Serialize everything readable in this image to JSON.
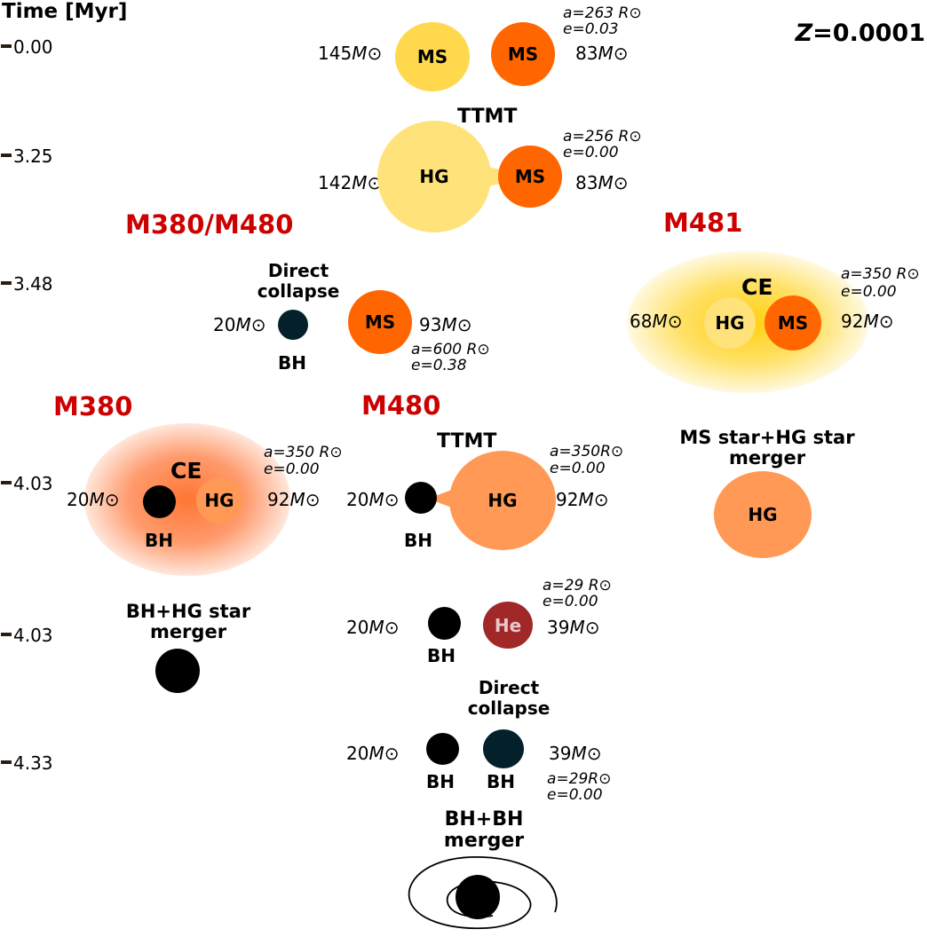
{
  "axis": {
    "title": "Time [Myr]",
    "ticks": [
      "0.00",
      "3.25",
      "3.48",
      "4.03",
      "4.03",
      "4.33"
    ]
  },
  "metallicity": "Z=0.0001",
  "msun": "M⊙",
  "stage0": {
    "star1": {
      "type": "MS",
      "mass": "145"
    },
    "star2": {
      "type": "MS",
      "mass": "83"
    },
    "orbit_a": "a=263 R⊙",
    "orbit_e": "e=0.03"
  },
  "stage1": {
    "event": "TTMT",
    "star1": {
      "type": "HG",
      "mass": "142"
    },
    "star2": {
      "type": "MS",
      "mass": "83"
    },
    "orbit_a": "a=256 R⊙",
    "orbit_e": "e=0.00"
  },
  "branch_m380_480": {
    "title": "M380/M480",
    "event_line1": "Direct",
    "event_line2": "collapse",
    "bh_label": "BH",
    "bh_mass": "20",
    "star": {
      "type": "MS",
      "mass": "93"
    },
    "orbit_a": "a=600 R⊙",
    "orbit_e": "e=0.38"
  },
  "branch_m481": {
    "title": "M481",
    "event": "CE",
    "star1": {
      "type": "HG",
      "mass": "68"
    },
    "star2": {
      "type": "MS",
      "mass": "92"
    },
    "orbit_a": "a=350 R⊙",
    "orbit_e": "e=0.00",
    "result_line1": "MS star+HG star",
    "result_line2": "merger",
    "result_star": "HG"
  },
  "branch_m380": {
    "title": "M380",
    "event": "CE",
    "bh_label": "BH",
    "bh_mass": "20",
    "star": {
      "type": "HG",
      "mass": "92"
    },
    "orbit_a": "a=350 R⊙",
    "orbit_e": "e=0.00",
    "result_line1": "BH+HG star",
    "result_line2": "merger"
  },
  "branch_m480": {
    "title": "M480",
    "event": "TTMT",
    "bh_label": "BH",
    "bh_mass": "20",
    "star": {
      "type": "HG",
      "mass": "92"
    },
    "orbit_a": "a=350R⊙",
    "orbit_e": "e=0.00",
    "stage2": {
      "bh_label": "BH",
      "bh_mass": "20",
      "star": {
        "type": "He",
        "mass": "39"
      },
      "orbit_a": "a=29 R⊙",
      "orbit_e": "e=0.00"
    },
    "stage3": {
      "event_line1": "Direct",
      "event_line2": "collapse",
      "bh1_label": "BH",
      "bh1_mass": "20",
      "bh2_label": "BH",
      "bh2_mass": "39",
      "orbit_a": "a=29R⊙",
      "orbit_e": "e=0.00"
    },
    "result_line1": "BH+BH",
    "result_line2": "merger"
  },
  "colors": {
    "ms_yellow": "#ffd84d",
    "ms_orange": "#ff6600",
    "hg_pale": "#ffe27a",
    "hg_orange": "#ff9955",
    "he": "#a02828",
    "bh": "#000000",
    "bh_collapse": "#04212b",
    "branch_title": "#cc0000"
  }
}
